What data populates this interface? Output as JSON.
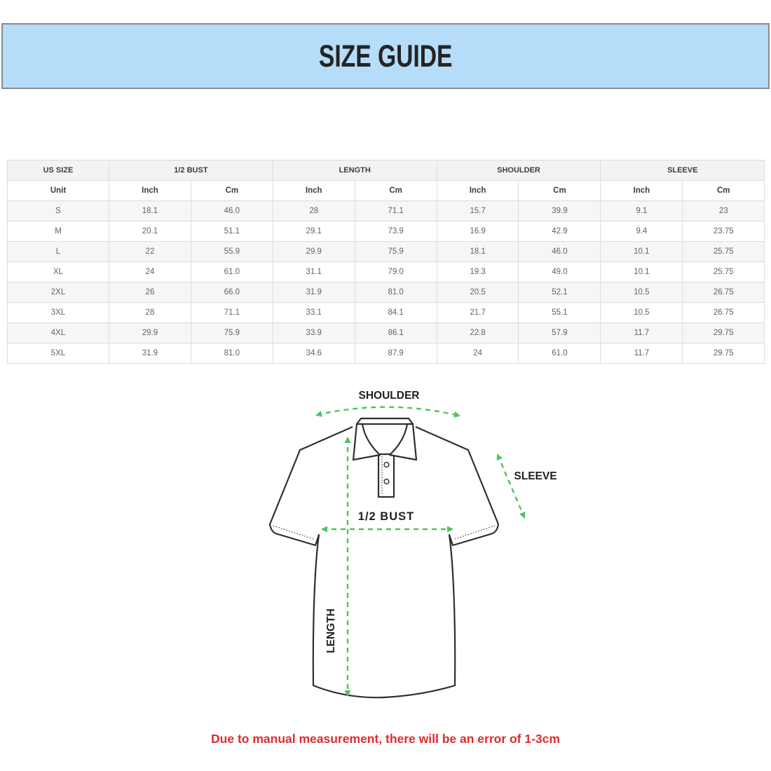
{
  "header": {
    "title": "SIZE GUIDE",
    "bg_color": "#b5dcf8",
    "border_color": "#858c93"
  },
  "table": {
    "group_headers": [
      {
        "label": "US SIZE",
        "span": 1
      },
      {
        "label": "1/2 BUST",
        "span": 2
      },
      {
        "label": "LENGTH",
        "span": 2
      },
      {
        "label": "SHOULDER",
        "span": 2
      },
      {
        "label": "SLEEVE",
        "span": 2
      }
    ],
    "unit_row": [
      "Unit",
      "Inch",
      "Cm",
      "Inch",
      "Cm",
      "Inch",
      "Cm",
      "Inch",
      "Cm"
    ],
    "rows": [
      [
        "S",
        "18.1",
        "46.0",
        "28",
        "71.1",
        "15.7",
        "39.9",
        "9.1",
        "23"
      ],
      [
        "M",
        "20.1",
        "51.1",
        "29.1",
        "73.9",
        "16.9",
        "42.9",
        "9.4",
        "23.75"
      ],
      [
        "L",
        "22",
        "55.9",
        "29.9",
        "75.9",
        "18.1",
        "46.0",
        "10.1",
        "25.75"
      ],
      [
        "XL",
        "24",
        "61.0",
        "31.1",
        "79.0",
        "19.3",
        "49.0",
        "10.1",
        "25.75"
      ],
      [
        "2XL",
        "26",
        "66.0",
        "31.9",
        "81.0",
        "20.5",
        "52.1",
        "10.5",
        "26.75"
      ],
      [
        "3XL",
        "28",
        "71.1",
        "33.1",
        "84.1",
        "21.7",
        "55.1",
        "10.5",
        "26.75"
      ],
      [
        "4XL",
        "29.9",
        "75.9",
        "33.9",
        "86.1",
        "22.8",
        "57.9",
        "11.7",
        "29.75"
      ],
      [
        "5XL",
        "31.9",
        "81.0",
        "34.6",
        "87.9",
        "24",
        "61.0",
        "11.7",
        "29.75"
      ]
    ]
  },
  "diagram": {
    "labels": {
      "shoulder": "SHOULDER",
      "sleeve": "SLEEVE",
      "bust": "1/2 BUST",
      "length": "LENGTH"
    },
    "arrow_color": "#4ec35e",
    "outline_color": "#2f2f2f"
  },
  "footer": {
    "note": "Due to manual measurement, there will be an error of 1-3cm",
    "color": "#e02b2b"
  }
}
